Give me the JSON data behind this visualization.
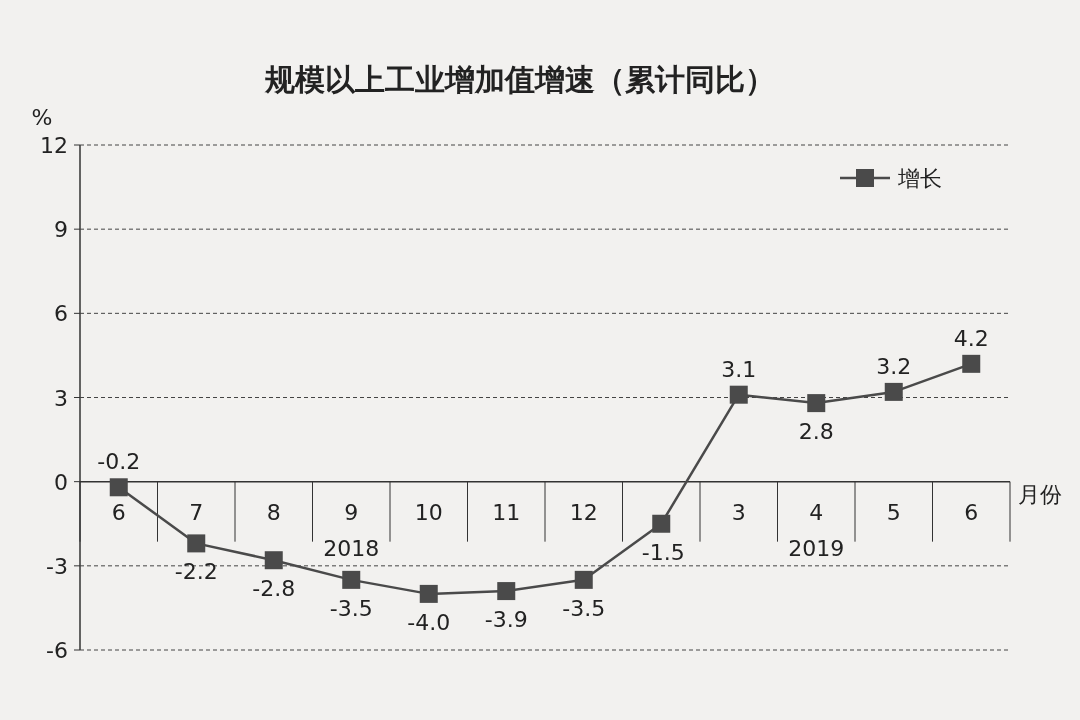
{
  "chart_data": {
    "type": "line",
    "title": "规模以上工业增加值增速（累计同比）",
    "ylabel": "%",
    "xlabel": "月份",
    "categories": [
      "6",
      "7",
      "8",
      "9",
      "10",
      "11",
      "12",
      null,
      "3",
      "4",
      "5",
      "6"
    ],
    "series": [
      {
        "name": "增长",
        "color": "#4a4a4a",
        "values": [
          -0.2,
          -2.2,
          -2.8,
          -3.5,
          -4.0,
          -3.9,
          -3.5,
          -1.5,
          3.1,
          2.8,
          3.2,
          4.2
        ],
        "value_labels": [
          "-0.2",
          "-2.2",
          "-2.8",
          "-3.5",
          "-4.0",
          "-3.9",
          "-3.5",
          "-1.5",
          "3.1",
          "2.8",
          "3.2",
          "4.2"
        ]
      }
    ],
    "annotations": [
      "2018",
      "2019"
    ],
    "ylim": [
      -6,
      12
    ],
    "yticks": [
      -6,
      -3,
      0,
      3,
      6,
      9,
      12
    ],
    "grid": "y",
    "legend": "top right",
    "marker": "square",
    "line_style": "solid"
  }
}
